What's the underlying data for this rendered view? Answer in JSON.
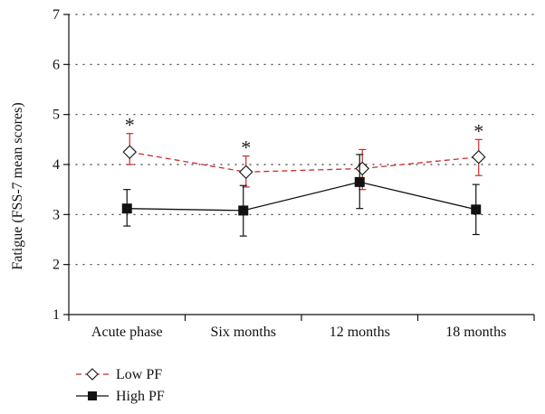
{
  "chart_data": {
    "type": "line",
    "categories": [
      "Acute phase",
      "Six months",
      "12 months",
      "18 months"
    ],
    "ylabel": "Fatigue (FSS-7 mean scores)",
    "xlabel": "",
    "ylim": [
      1,
      7
    ],
    "yticks": [
      1,
      2,
      3,
      4,
      5,
      6,
      7
    ],
    "grid": "horizontal dotted",
    "legend_position": "bottom-left",
    "series": [
      {
        "name": "Low PF",
        "color": "#cc2a2a",
        "line_style": "dashed",
        "marker": "open-diamond",
        "values": [
          4.25,
          3.85,
          3.92,
          4.15
        ],
        "error_low": [
          4.0,
          3.55,
          3.5,
          3.78
        ],
        "error_high": [
          4.62,
          4.17,
          4.3,
          4.5
        ]
      },
      {
        "name": "High PF",
        "color": "#111111",
        "line_style": "solid",
        "marker": "filled-square",
        "values": [
          3.12,
          3.08,
          3.65,
          3.1
        ],
        "error_low": [
          2.77,
          2.57,
          3.12,
          2.6
        ],
        "error_high": [
          3.5,
          3.58,
          4.2,
          3.6
        ]
      }
    ],
    "annotations": [
      {
        "category_index": 0,
        "text": "*",
        "y": 4.62
      },
      {
        "category_index": 1,
        "text": "*",
        "y": 4.17
      },
      {
        "category_index": 3,
        "text": "*",
        "y": 4.5
      }
    ]
  }
}
